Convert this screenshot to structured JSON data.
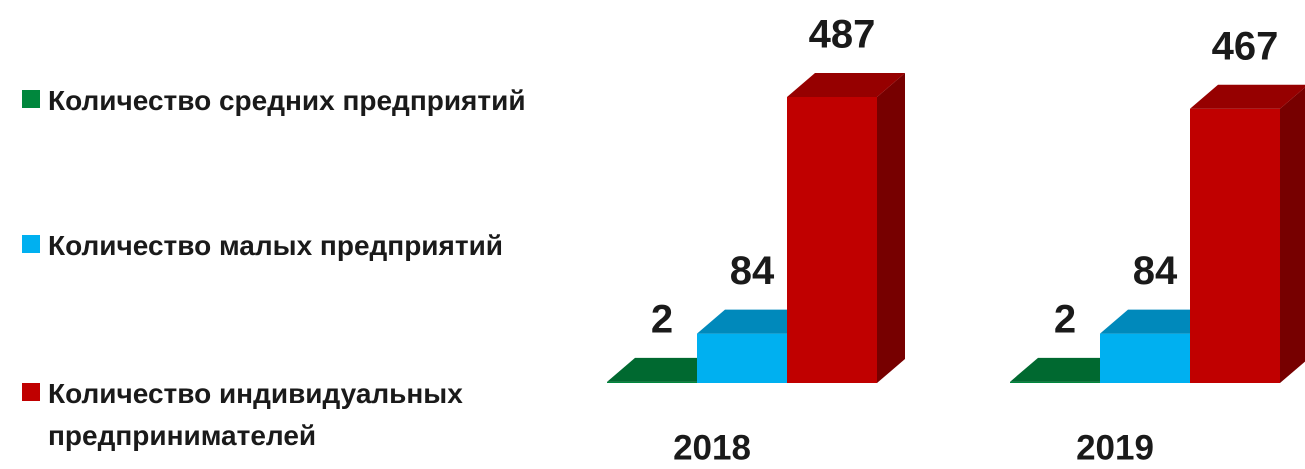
{
  "chart_data": {
    "type": "bar3d",
    "categories": [
      "2018",
      "2019"
    ],
    "series": [
      {
        "name": "Количество средних предприятий",
        "color": "#00873d",
        "values": [
          2,
          2
        ]
      },
      {
        "name": "Количество малых предприятий",
        "color": "#00b0f0",
        "values": [
          84,
          84
        ]
      },
      {
        "name": "Количество индивидуальных предпринимателей",
        "color": "#c00000",
        "values": [
          487,
          467
        ]
      }
    ]
  }
}
